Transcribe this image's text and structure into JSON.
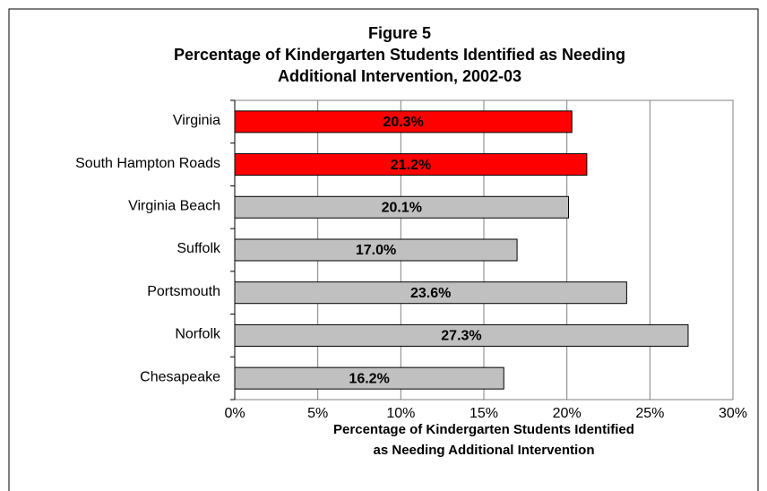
{
  "chart_data": {
    "type": "barh",
    "title": [
      "Figure 5",
      "Percentage of Kindergarten Students Identified as Needing",
      "Additional Intervention, 2002-03"
    ],
    "xlabel": [
      "Percentage of Kindergarten Students Identified",
      "as Needing Additional Intervention"
    ],
    "categories": [
      "Virginia",
      "South Hampton Roads",
      "Virginia Beach",
      "Suffolk",
      "Portsmouth",
      "Norfolk",
      "Chesapeake"
    ],
    "values": [
      20.3,
      21.2,
      20.1,
      17.0,
      23.6,
      27.3,
      16.2
    ],
    "value_labels": [
      "20.3%",
      "21.2%",
      "20.1%",
      "17.0%",
      "23.6%",
      "27.3%",
      "16.2%"
    ],
    "colors": [
      "#ff0000",
      "#ff0000",
      "#c0c0c0",
      "#c0c0c0",
      "#c0c0c0",
      "#c0c0c0",
      "#c0c0c0"
    ],
    "xlim": [
      0,
      30
    ],
    "xticks": [
      {
        "value": 0,
        "label": "0%"
      },
      {
        "value": 5,
        "label": "5%"
      },
      {
        "value": 10,
        "label": "10%"
      },
      {
        "value": 15,
        "label": "15%"
      },
      {
        "value": 20,
        "label": "20%"
      },
      {
        "value": 25,
        "label": "25%"
      },
      {
        "value": 30,
        "label": "30%"
      }
    ],
    "grid": true
  }
}
